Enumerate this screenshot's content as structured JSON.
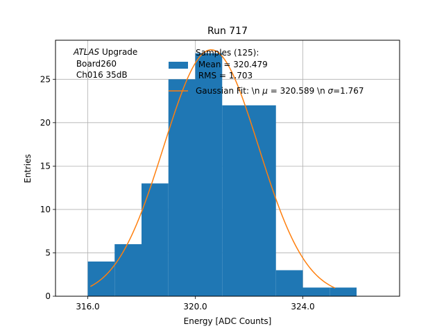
{
  "chart_data": {
    "type": "bar",
    "title": "Run 717",
    "xlabel": "Energy [ADC Counts]",
    "ylabel": "Entries",
    "xlim": [
      314.8,
      327.6
    ],
    "ylim": [
      0,
      29.5
    ],
    "xticks": [
      316.0,
      320.0,
      324.0
    ],
    "xtick_labels": [
      "316.0",
      "320.0",
      "324.0"
    ],
    "yticks": [
      0,
      5,
      10,
      15,
      20,
      25
    ],
    "ytick_labels": [
      "0",
      "5",
      "10",
      "15",
      "20",
      "25"
    ],
    "grid": true,
    "bin_edges": [
      316,
      317,
      318,
      319,
      320,
      321,
      322,
      323,
      324,
      325,
      326
    ],
    "counts": [
      4,
      6,
      13,
      25,
      28,
      22,
      22,
      3,
      1,
      1
    ],
    "bar_color": "#1f77b4",
    "fit": {
      "amplitude": 28.4,
      "mu": 320.589,
      "sigma": 1.767,
      "x_range": [
        316.1,
        325.2
      ],
      "color": "#ff7f0e"
    },
    "annotation": {
      "line1_italic": "ATLAS",
      "line1_rest": " Upgrade",
      "line2": " Board260",
      "line3": " Ch016 35dB"
    },
    "legend": {
      "placement": "top-right",
      "hist_label_lines": [
        "Samples (125):",
        " Mean = 320.479",
        " RMS = 1.703"
      ],
      "fit_label_parts": [
        "Gaussian Fit: \\n ",
        "μ",
        " = 320.589 \\n ",
        "σ",
        "=1.767"
      ]
    }
  }
}
